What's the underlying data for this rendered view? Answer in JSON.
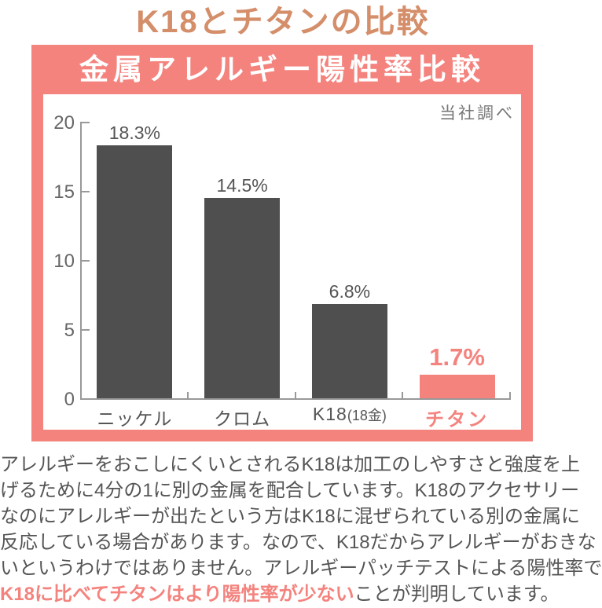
{
  "page": {
    "title": "K18とチタンの比較",
    "banner": "金属アレルギー陽性率比較"
  },
  "chart": {
    "note": "当社調べ"
  },
  "chart_data": {
    "type": "bar",
    "title": "金属アレルギー陽性率比較",
    "categories": [
      "ニッケル",
      "クロム",
      "K18(18金)",
      "チタン"
    ],
    "values": [
      18.3,
      14.5,
      6.8,
      1.7
    ],
    "value_labels": [
      "18.3%",
      "14.5%",
      "6.8%",
      "1.7%"
    ],
    "category_main": [
      "ニッケル",
      "クロム",
      "K18",
      "チタン"
    ],
    "category_suffix": [
      "",
      "",
      "(18金)",
      ""
    ],
    "highlight_index": 3,
    "ylim": [
      0,
      20
    ],
    "yticks": [
      0,
      5,
      10,
      15,
      20
    ],
    "grid": false,
    "legend": false,
    "note": "当社調べ",
    "bar_color": "#4f4f4f",
    "highlight_color": "#f4837e"
  },
  "body": {
    "lines": [
      "アレルギーをおこしにくいとされるK18は加工のしやすさと強度を上",
      "げるために4分の1に別の金属を配合しています。K18のアクセサリー",
      "なのにアレルギーが出たという方はK18に混ぜられている別の金属に",
      "反応している場合があります。なので、K18だからアレルギーがおきな",
      "いというわけではありません。アレルギーパッチテストによる陽性率で"
    ],
    "last_line": {
      "highlight": "K18に比べてチタンはより陽性率が少ない",
      "rest": "ことが判明しています。"
    }
  },
  "colors": {
    "pink": "#f4837e",
    "title_coral": "#d48e6a",
    "bar_gray": "#4f4f4f",
    "text_gray": "#555555"
  }
}
